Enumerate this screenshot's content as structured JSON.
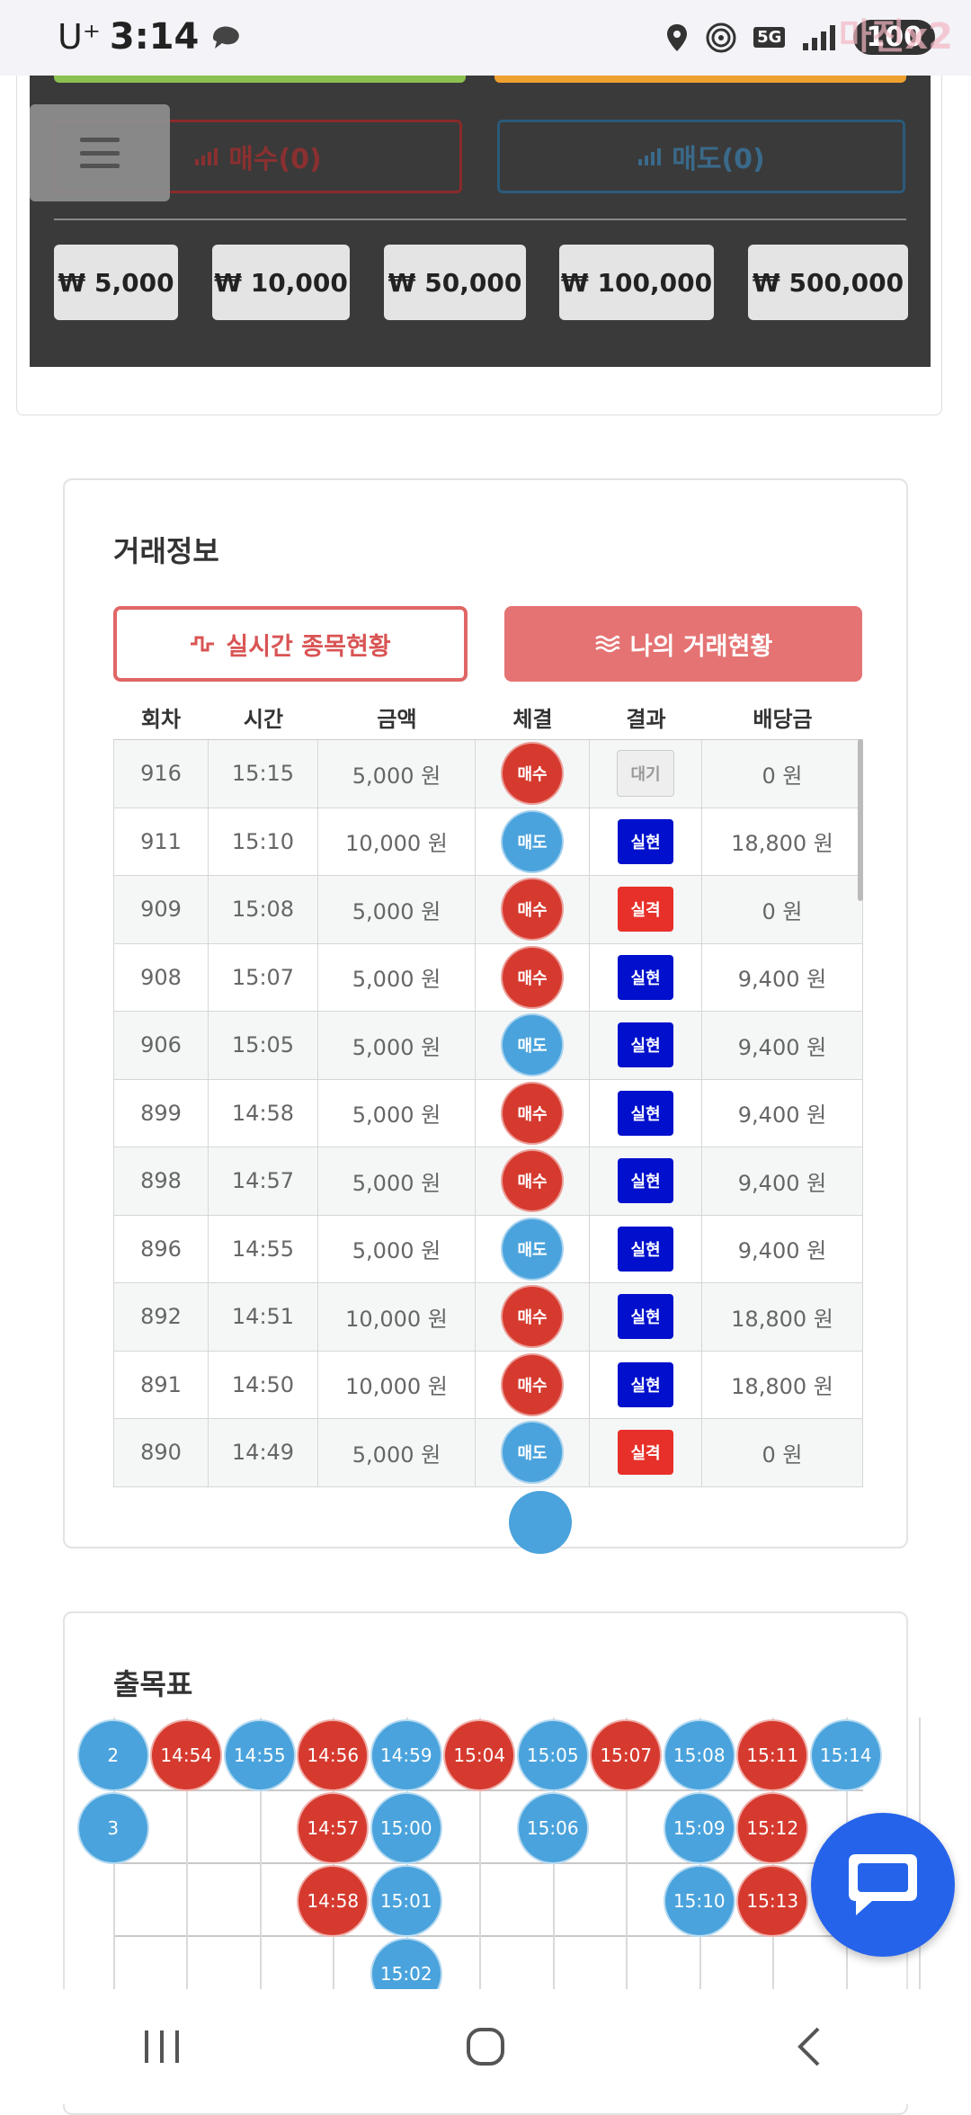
{
  "status": {
    "carrier": "U⁺",
    "time": "3:14",
    "battery": "100",
    "network": "5G"
  },
  "watermark": "마진x2",
  "panel": {
    "buy_label": "매수(0)",
    "sell_label": "매도(0)",
    "amounts": [
      "₩ 5,000",
      "₩ 10,000",
      "₩ 50,000",
      "₩ 100,000",
      "₩ 500,000"
    ]
  },
  "trade": {
    "title": "거래정보",
    "tab_realtime": "실시간 종목현황",
    "tab_mine": "나의 거래현황",
    "columns": [
      "회차",
      "시간",
      "금액",
      "체결",
      "결과",
      "배당금"
    ],
    "rows": [
      {
        "round": "916",
        "time": "15:15",
        "amount": "5,000 원",
        "side": "매수",
        "result": "대기",
        "payout": "0 원"
      },
      {
        "round": "911",
        "time": "15:10",
        "amount": "10,000 원",
        "side": "매도",
        "result": "실현",
        "payout": "18,800 원"
      },
      {
        "round": "909",
        "time": "15:08",
        "amount": "5,000 원",
        "side": "매수",
        "result": "실격",
        "payout": "0 원"
      },
      {
        "round": "908",
        "time": "15:07",
        "amount": "5,000 원",
        "side": "매수",
        "result": "실현",
        "payout": "9,400 원"
      },
      {
        "round": "906",
        "time": "15:05",
        "amount": "5,000 원",
        "side": "매도",
        "result": "실현",
        "payout": "9,400 원"
      },
      {
        "round": "899",
        "time": "14:58",
        "amount": "5,000 원",
        "side": "매수",
        "result": "실현",
        "payout": "9,400 원"
      },
      {
        "round": "898",
        "time": "14:57",
        "amount": "5,000 원",
        "side": "매수",
        "result": "실현",
        "payout": "9,400 원"
      },
      {
        "round": "896",
        "time": "14:55",
        "amount": "5,000 원",
        "side": "매도",
        "result": "실현",
        "payout": "9,400 원"
      },
      {
        "round": "892",
        "time": "14:51",
        "amount": "10,000 원",
        "side": "매수",
        "result": "실현",
        "payout": "18,800 원"
      },
      {
        "round": "891",
        "time": "14:50",
        "amount": "10,000 원",
        "side": "매수",
        "result": "실현",
        "payout": "18,800 원"
      },
      {
        "round": "890",
        "time": "14:49",
        "amount": "5,000 원",
        "side": "매도",
        "result": "실격",
        "payout": "0 원"
      }
    ]
  },
  "board": {
    "title": "출목표",
    "columns": [
      {
        "type": "sell",
        "times": [
          "2",
          "3"
        ]
      },
      {
        "type": "buy",
        "times": [
          "14:54"
        ]
      },
      {
        "type": "sell",
        "times": [
          "14:55"
        ]
      },
      {
        "type": "buy",
        "times": [
          "14:56",
          "14:57",
          "14:58"
        ]
      },
      {
        "type": "sell",
        "times": [
          "14:59",
          "15:00",
          "15:01",
          "15:02"
        ]
      },
      {
        "type": "buy",
        "times": [
          "15:04"
        ]
      },
      {
        "type": "sell",
        "times": [
          "15:05",
          "15:06"
        ]
      },
      {
        "type": "buy",
        "times": [
          "15:07"
        ]
      },
      {
        "type": "sell",
        "times": [
          "15:08",
          "15:09",
          "15:10"
        ]
      },
      {
        "type": "buy",
        "times": [
          "15:11",
          "15:12",
          "15:13"
        ]
      },
      {
        "type": "sell",
        "times": [
          "15:14"
        ]
      }
    ]
  },
  "colors": {
    "buy": "#d63a2f",
    "sell": "#4aa3dc",
    "hit": "#0010cc",
    "miss": "#e8302a",
    "accent": "#e57373",
    "fab": "#2563eb"
  }
}
